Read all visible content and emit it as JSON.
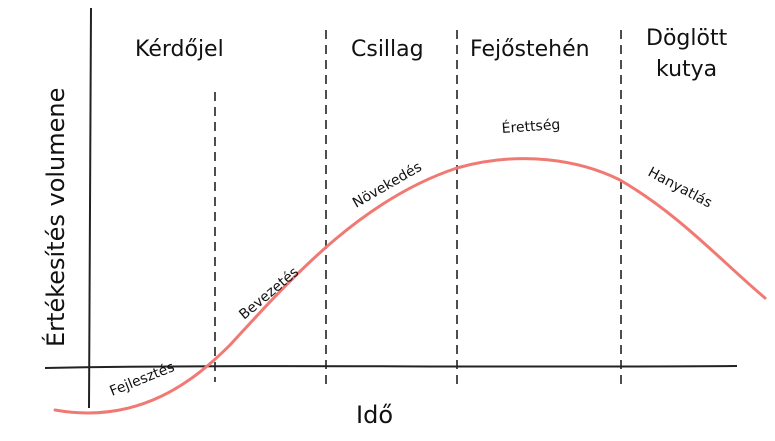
{
  "colors": {
    "curve": "#f07a73",
    "ink": "#222222",
    "background": "#ffffff"
  },
  "axes": {
    "y_label": "Értékesítés volumene",
    "x_label": "Idő"
  },
  "quadrants": [
    {
      "name": "Kérdőjel"
    },
    {
      "name": "Csillag"
    },
    {
      "name": "Fejőstehén"
    },
    {
      "name": "Döglött",
      "name_line2": "kutya"
    }
  ],
  "phases": [
    {
      "label": "Fejlesztés"
    },
    {
      "label": "Bevezetés"
    },
    {
      "label": "Növekedés"
    },
    {
      "label": "Érettség"
    },
    {
      "label": "Hanyatlás"
    }
  ]
}
